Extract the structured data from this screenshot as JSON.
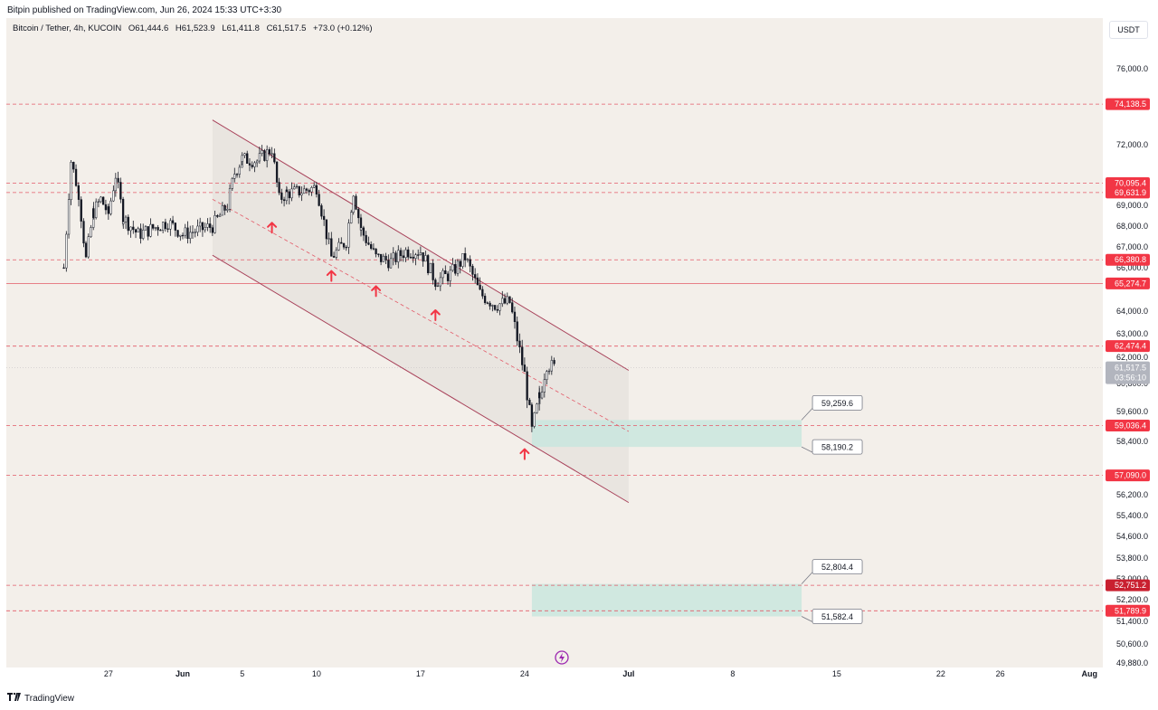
{
  "header": {
    "published": "Bitpin published on TradingView.com, Jun 26, 2024 15:33 UTC+3:30"
  },
  "legend": {
    "symbol": "Bitcoin / Tether, 4h, KUCOIN",
    "open": "O61,444.6",
    "high": "H61,523.9",
    "low": "L61,411.8",
    "close": "C61,517.5",
    "change": "+73.0 (+0.12%)"
  },
  "currency_button": "USDT",
  "footer": {
    "brand": "TradingView"
  },
  "colors": {
    "background": "#f3efea",
    "candle": "#131722",
    "level_line": "#e35a68",
    "level_tag": "#f23645",
    "channel": "#a8425a",
    "zone_fill": "#c9e6de",
    "arrow": "#f23645",
    "price_tag": "#b2b5be",
    "dark_tag": "#c92030"
  },
  "chart_data": {
    "type": "candlestick",
    "symbol": "Bitcoin / Tether",
    "timeframe": "4h",
    "exchange": "KUCOIN",
    "ylim": [
      49300,
      77200
    ],
    "y_ticks": [
      "76,000.0",
      "72,000.0",
      "69,000.0",
      "68,000.0",
      "67,000.0",
      "66,000.0",
      "64,000.0",
      "63,000.0",
      "62,000.0",
      "60,800.0",
      "59,600.0",
      "58,400.0",
      "57,200.0",
      "56,200.0",
      "55,400.0",
      "54,600.0",
      "53,800.0",
      "53,000.0",
      "52,200.0",
      "51,400.0",
      "50,600.0",
      "49,880.0"
    ],
    "x_ticks": [
      {
        "label": "27",
        "date": "2024-05-27"
      },
      {
        "label": "Jun",
        "date": "2024-06-01"
      },
      {
        "label": "5",
        "date": "2024-06-05"
      },
      {
        "label": "10",
        "date": "2024-06-10"
      },
      {
        "label": "17",
        "date": "2024-06-17"
      },
      {
        "label": "24",
        "date": "2024-06-24"
      },
      {
        "label": "Jul",
        "date": "2024-07-01"
      },
      {
        "label": "8",
        "date": "2024-07-08"
      },
      {
        "label": "15",
        "date": "2024-07-15"
      },
      {
        "label": "22",
        "date": "2024-07-22"
      },
      {
        "label": "26",
        "date": "2024-07-26"
      },
      {
        "label": "Aug",
        "date": "2024-08-01"
      }
    ],
    "price_path": [
      [
        "2024-05-24",
        66000
      ],
      [
        "2024-05-24",
        71200
      ],
      [
        "2024-05-25",
        69600
      ],
      [
        "2024-05-25",
        66400
      ],
      [
        "2024-05-26",
        68700
      ],
      [
        "2024-05-26",
        69300
      ],
      [
        "2024-05-27",
        68600
      ],
      [
        "2024-05-27",
        70500
      ],
      [
        "2024-05-28",
        68400
      ],
      [
        "2024-05-29",
        67600
      ],
      [
        "2024-05-30",
        67900
      ],
      [
        "2024-05-31",
        68200
      ],
      [
        "2024-06-01",
        67600
      ],
      [
        "2024-06-02",
        67800
      ],
      [
        "2024-06-03",
        68000
      ],
      [
        "2024-06-04",
        69000
      ],
      [
        "2024-06-04",
        70600
      ],
      [
        "2024-06-05",
        71300
      ],
      [
        "2024-06-06",
        71200
      ],
      [
        "2024-06-07",
        71800
      ],
      [
        "2024-06-07",
        69300
      ],
      [
        "2024-06-08",
        69600
      ],
      [
        "2024-06-09",
        69700
      ],
      [
        "2024-06-10",
        69900
      ],
      [
        "2024-06-11",
        66500
      ],
      [
        "2024-06-12",
        67300
      ],
      [
        "2024-06-12",
        69700
      ],
      [
        "2024-06-13",
        67800
      ],
      [
        "2024-06-14",
        66500
      ],
      [
        "2024-06-15",
        66300
      ],
      [
        "2024-06-16",
        66800
      ],
      [
        "2024-06-17",
        66800
      ],
      [
        "2024-06-18",
        65400
      ],
      [
        "2024-06-19",
        65700
      ],
      [
        "2024-06-20",
        66500
      ],
      [
        "2024-06-21",
        64800
      ],
      [
        "2024-06-22",
        64300
      ],
      [
        "2024-06-23",
        64400
      ],
      [
        "2024-06-24",
        61200
      ],
      [
        "2024-06-24",
        58800
      ],
      [
        "2024-06-25",
        60200
      ],
      [
        "2024-06-25",
        61700
      ],
      [
        "2024-06-26",
        61517.5
      ]
    ],
    "current_price": "61,517.5",
    "countdown": "03:56:10",
    "horizontal_levels": [
      {
        "price": 74138.5,
        "label": "74,138.5",
        "style": "dashed"
      },
      {
        "price": 70095.4,
        "label": "70,095.4",
        "style": "dashed"
      },
      {
        "price": 69631.9,
        "label": "69,631.9",
        "style": "dashed"
      },
      {
        "price": 66380.8,
        "label": "66,380.8",
        "style": "dashed"
      },
      {
        "price": 65274.7,
        "label": "65,274.7",
        "style": "solid"
      },
      {
        "price": 62474.4,
        "label": "62,474.4",
        "style": "dashed"
      },
      {
        "price": 59036.4,
        "label": "59,036.4",
        "style": "dashed"
      },
      {
        "price": 57090.0,
        "label": "57,090.0",
        "style": "dashed"
      },
      {
        "price": 52751.2,
        "label": "52,751.2",
        "style": "dashed",
        "tag": "dark"
      },
      {
        "price": 51789.9,
        "label": "51,789.9",
        "style": "dashed"
      }
    ],
    "descending_channel": {
      "upper": [
        [
          "2024-06-03",
          73300
        ],
        [
          "2024-07-01",
          61400
        ]
      ],
      "lower": [
        [
          "2024-06-03",
          66600
        ],
        [
          "2024-07-01",
          55900
        ]
      ],
      "middle": [
        [
          "2024-06-03",
          69300
        ],
        [
          "2024-07-01",
          58800
        ]
      ]
    },
    "zones": [
      {
        "from": "2024-06-24",
        "to": "2024-07-13",
        "top": 59259.6,
        "bottom": 58190.2,
        "top_label": "59,259.6",
        "bottom_label": "58,190.2"
      },
      {
        "from": "2024-06-24",
        "to": "2024-07-13",
        "top": 52804.4,
        "bottom": 51582.4,
        "top_label": "52,804.4",
        "bottom_label": "51,582.4"
      }
    ],
    "arrows": [
      {
        "date": "2024-06-07",
        "price": 67900
      },
      {
        "date": "2024-06-11",
        "price": 65600
      },
      {
        "date": "2024-06-14",
        "price": 64900
      },
      {
        "date": "2024-06-18",
        "price": 63800
      },
      {
        "date": "2024-06-24",
        "price": 57900
      }
    ]
  }
}
